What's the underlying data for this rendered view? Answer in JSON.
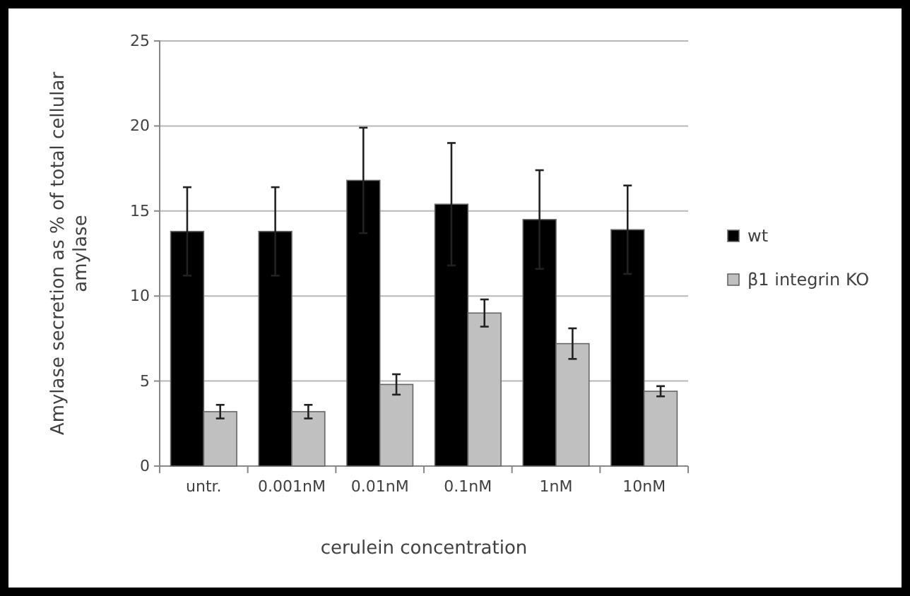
{
  "chart_data": {
    "type": "bar",
    "xlabel": "cerulein concentration",
    "ylabel": "Amylase secretion as % of total cellular amylase",
    "categories": [
      "untr.",
      "0.001nM",
      "0.01nM",
      "0.1nM",
      "1nM",
      "10nM"
    ],
    "series": [
      {
        "name": "wt",
        "color": "#000000",
        "values": [
          13.8,
          13.8,
          16.8,
          15.4,
          14.5,
          13.9
        ],
        "errors": [
          2.6,
          2.6,
          3.1,
          3.6,
          2.9,
          2.6
        ]
      },
      {
        "name": "β1 integrin KO",
        "color": "#c0c0c0",
        "values": [
          3.2,
          3.2,
          4.8,
          9.0,
          7.2,
          4.4
        ],
        "errors": [
          0.4,
          0.4,
          0.6,
          0.8,
          0.9,
          0.3
        ]
      }
    ],
    "ylim": [
      0,
      25
    ],
    "yticks": [
      0,
      5,
      10,
      15,
      20,
      25
    ],
    "grid": "y",
    "legend": "right"
  }
}
